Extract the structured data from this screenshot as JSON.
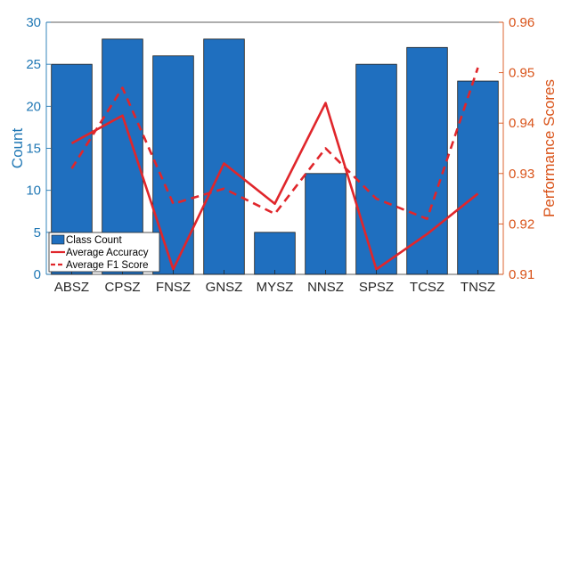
{
  "chart_data": {
    "type": "bar",
    "categories": [
      "ABSZ",
      "CPSZ",
      "FNSZ",
      "GNSZ",
      "MYSZ",
      "NNSZ",
      "SPSZ",
      "TCSZ",
      "TNSZ"
    ],
    "ylabel": "Count",
    "y2label": "Performance Scores",
    "ylim": [
      0,
      30
    ],
    "y2lim": [
      0.91,
      0.96
    ],
    "yticks": [
      "0",
      "5",
      "10",
      "15",
      "20",
      "25",
      "30"
    ],
    "y2ticks": [
      "0.91",
      "0.92",
      "0.93",
      "0.94",
      "0.95",
      "0.96"
    ],
    "grid": false,
    "legend_position": "bottom-left",
    "series": [
      {
        "name": "Class Count",
        "kind": "bar",
        "axis": "left",
        "color": "#1f6fbf",
        "values": [
          25,
          28,
          26,
          28,
          5,
          12,
          25,
          27,
          23
        ]
      },
      {
        "name": "Average Accuracy",
        "kind": "line",
        "style": "solid",
        "axis": "right",
        "color": "#e0262b",
        "values": [
          0.936,
          0.9415,
          0.911,
          0.932,
          0.924,
          0.944,
          0.911,
          0.918,
          0.926
        ]
      },
      {
        "name": "Average F1 Score",
        "kind": "line",
        "style": "dashed",
        "axis": "right",
        "color": "#e0262b",
        "values": [
          0.931,
          0.947,
          0.924,
          0.927,
          0.922,
          0.935,
          0.925,
          0.921,
          0.951
        ]
      }
    ],
    "colors": {
      "left_axis": "#1f77b4",
      "right_axis": "#d95319",
      "bar_edge": "#1a1a1a"
    }
  }
}
